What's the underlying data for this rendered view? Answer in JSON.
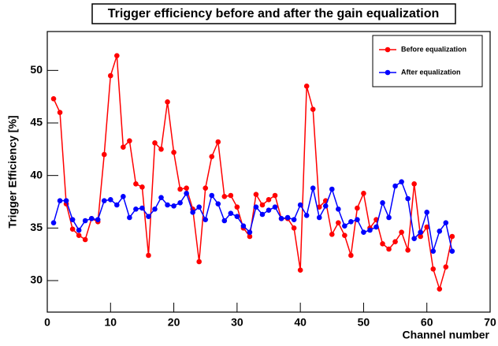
{
  "chart_data": {
    "type": "line",
    "title": "Trigger efficiency before and after the gain equalization",
    "x_label": "Channel number",
    "y_label": "Trigger Efficiency [%]",
    "x": [
      1,
      2,
      3,
      4,
      5,
      6,
      7,
      8,
      9,
      10,
      11,
      12,
      13,
      14,
      15,
      16,
      17,
      18,
      19,
      20,
      21,
      22,
      23,
      24,
      25,
      26,
      27,
      28,
      29,
      30,
      31,
      32,
      33,
      34,
      35,
      36,
      37,
      38,
      39,
      40,
      41,
      42,
      43,
      44,
      45,
      46,
      47,
      48,
      49,
      50,
      51,
      52,
      53,
      54,
      55,
      56,
      57,
      58,
      59,
      60,
      61,
      62,
      63,
      64
    ],
    "series": [
      {
        "name": "Before equalization",
        "color": "#ff0000",
        "values": [
          47.3,
          46.0,
          37.3,
          34.9,
          34.3,
          33.9,
          35.9,
          35.6,
          42.0,
          49.5,
          51.4,
          42.7,
          43.3,
          39.2,
          38.9,
          32.4,
          43.1,
          42.5,
          47.0,
          42.2,
          38.7,
          38.8,
          36.8,
          31.8,
          38.8,
          41.8,
          43.2,
          38.0,
          38.1,
          37.0,
          35.0,
          34.2,
          38.2,
          37.2,
          37.7,
          38.1,
          35.9,
          35.9,
          35.0,
          31.0,
          48.5,
          46.3,
          37.0,
          37.6,
          34.4,
          35.5,
          34.3,
          32.4,
          36.9,
          38.3,
          35.0,
          35.8,
          33.5,
          33.0,
          33.7,
          34.6,
          32.9,
          39.2,
          34.2,
          35.1,
          31.1,
          29.2,
          31.3,
          34.2
        ]
      },
      {
        "name": "After equalization",
        "color": "#0000ff",
        "values": [
          35.5,
          37.6,
          37.6,
          35.8,
          34.8,
          35.7,
          35.9,
          35.8,
          37.6,
          37.7,
          37.2,
          38.0,
          36.0,
          36.8,
          36.9,
          36.1,
          36.8,
          37.9,
          37.2,
          37.1,
          37.4,
          38.3,
          36.5,
          37.0,
          35.8,
          38.1,
          37.3,
          35.7,
          36.4,
          36.1,
          35.2,
          34.6,
          37.0,
          36.3,
          36.7,
          37.0,
          35.9,
          36.0,
          35.8,
          37.2,
          36.2,
          38.8,
          36.0,
          37.1,
          38.7,
          36.8,
          35.2,
          35.6,
          35.8,
          34.6,
          34.8,
          35.1,
          37.4,
          36.0,
          39.0,
          39.4,
          37.8,
          34.0,
          34.6,
          36.5,
          32.8,
          34.7,
          35.5,
          32.8
        ]
      }
    ],
    "xlim": [
      0,
      70
    ],
    "xticks": [
      0,
      10,
      20,
      30,
      40,
      50,
      60,
      70
    ],
    "ylim": [
      27,
      53.7
    ],
    "yticks": [
      30,
      35,
      40,
      45,
      50
    ],
    "legend": "top-right",
    "grid": false
  }
}
